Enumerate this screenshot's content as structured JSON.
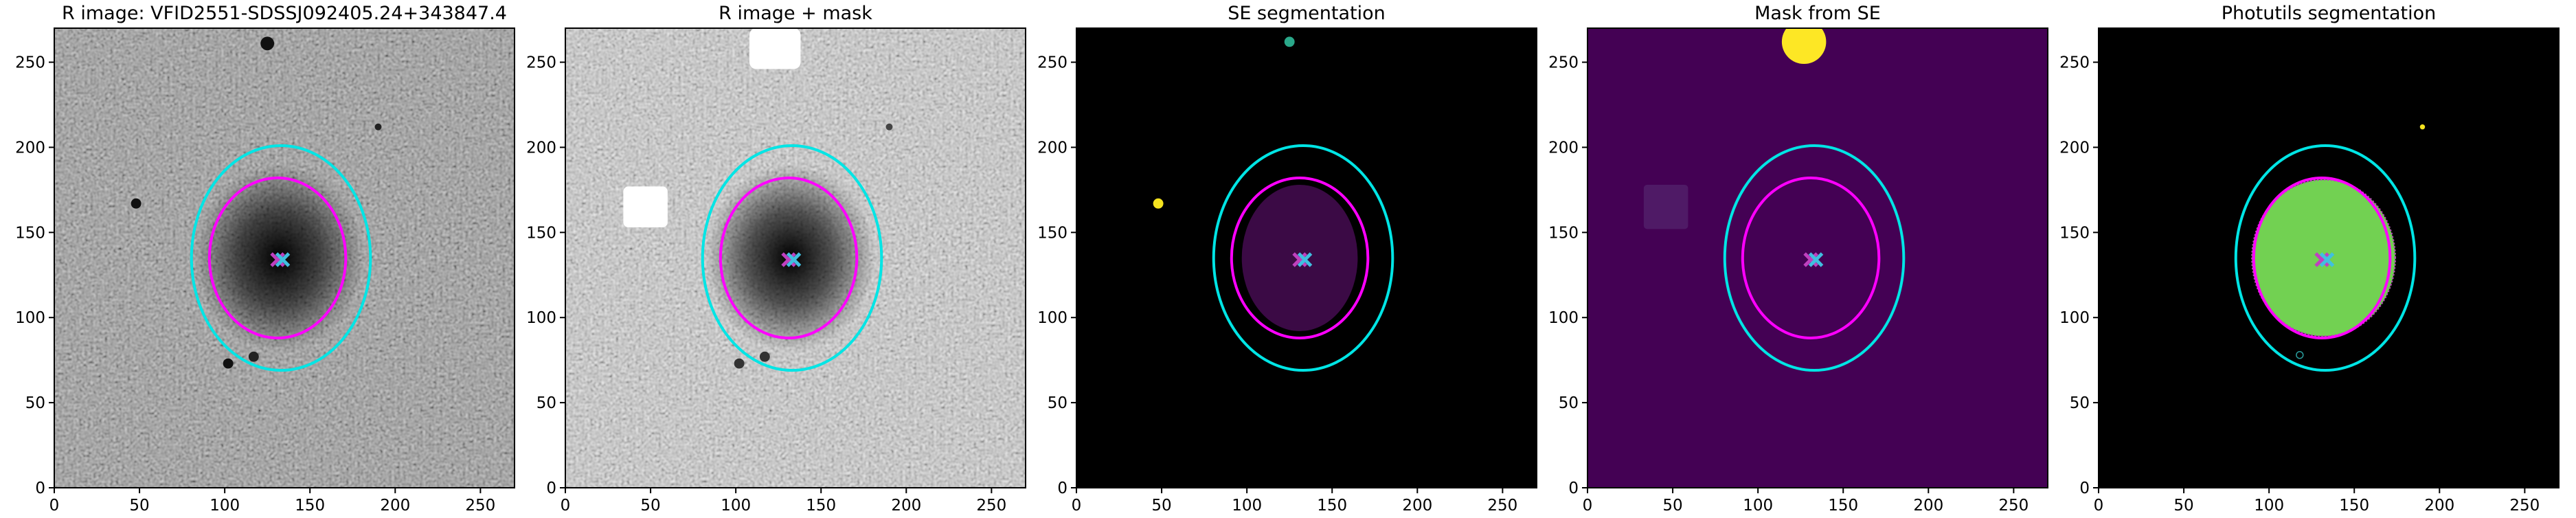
{
  "chart_data": [
    {
      "type": "image",
      "title": "R image: VFID2551-SDSSJ092405.24+343847.4",
      "xlim": [
        0,
        270
      ],
      "ylim": [
        0,
        270
      ],
      "xticks": [
        0,
        50,
        100,
        150,
        200,
        250
      ],
      "yticks": [
        0,
        50,
        100,
        150,
        200,
        250
      ],
      "ellipses": [
        {
          "x": 133,
          "y": 135,
          "width": 105,
          "height": 132,
          "color": "#00e5e5"
        },
        {
          "x": 131,
          "y": 135,
          "width": 80,
          "height": 94,
          "color": "#ff00ff"
        }
      ],
      "markers": [
        {
          "x": 131,
          "y": 134,
          "color": "#bf40bf"
        },
        {
          "x": 134,
          "y": 134,
          "color": "#40bfe0"
        }
      ]
    },
    {
      "type": "image",
      "title": "R image + mask",
      "xlim": [
        0,
        270
      ],
      "ylim": [
        0,
        270
      ],
      "xticks": [
        0,
        50,
        100,
        150,
        200,
        250
      ],
      "yticks": [
        0,
        50,
        100,
        150,
        200,
        250
      ],
      "ellipses": [
        {
          "x": 133,
          "y": 135,
          "width": 105,
          "height": 132,
          "color": "#00e5e5"
        },
        {
          "x": 131,
          "y": 135,
          "width": 80,
          "height": 94,
          "color": "#ff00ff"
        }
      ],
      "markers": [
        {
          "x": 131,
          "y": 134,
          "color": "#bf40bf"
        },
        {
          "x": 134,
          "y": 134,
          "color": "#40bfe0"
        }
      ]
    },
    {
      "type": "image",
      "title": "SE segmentation",
      "xlim": [
        0,
        270
      ],
      "ylim": [
        0,
        270
      ],
      "xticks": [
        0,
        50,
        100,
        150,
        200,
        250
      ],
      "yticks": [
        0,
        50,
        100,
        150,
        200,
        250
      ],
      "ellipses": [
        {
          "x": 133,
          "y": 135,
          "width": 105,
          "height": 132,
          "color": "#00e5e5"
        },
        {
          "x": 131,
          "y": 135,
          "width": 80,
          "height": 94,
          "color": "#ff00ff"
        }
      ],
      "markers": [
        {
          "x": 131,
          "y": 134,
          "color": "#bf40bf"
        },
        {
          "x": 134,
          "y": 134,
          "color": "#40bfe0"
        }
      ]
    },
    {
      "type": "image",
      "title": "Mask from SE",
      "xlim": [
        0,
        270
      ],
      "ylim": [
        0,
        270
      ],
      "xticks": [
        0,
        50,
        100,
        150,
        200,
        250
      ],
      "yticks": [
        0,
        50,
        100,
        150,
        200,
        250
      ],
      "ellipses": [
        {
          "x": 133,
          "y": 135,
          "width": 105,
          "height": 132,
          "color": "#00e5e5"
        },
        {
          "x": 131,
          "y": 135,
          "width": 80,
          "height": 94,
          "color": "#ff00ff"
        }
      ],
      "markers": [
        {
          "x": 131,
          "y": 134,
          "color": "#bf40bf"
        },
        {
          "x": 134,
          "y": 134,
          "color": "#40bfe0"
        }
      ]
    },
    {
      "type": "image",
      "title": "Photutils segmentation",
      "xlim": [
        0,
        270
      ],
      "ylim": [
        0,
        270
      ],
      "xticks": [
        0,
        50,
        100,
        150,
        200,
        250
      ],
      "yticks": [
        0,
        50,
        100,
        150,
        200,
        250
      ],
      "ellipses": [
        {
          "x": 133,
          "y": 135,
          "width": 105,
          "height": 132,
          "color": "#00e5e5"
        },
        {
          "x": 131,
          "y": 135,
          "width": 80,
          "height": 94,
          "color": "#ff00ff"
        }
      ],
      "markers": [
        {
          "x": 131,
          "y": 134,
          "color": "#bf40bf"
        },
        {
          "x": 134,
          "y": 134,
          "color": "#40bfe0"
        }
      ]
    }
  ]
}
